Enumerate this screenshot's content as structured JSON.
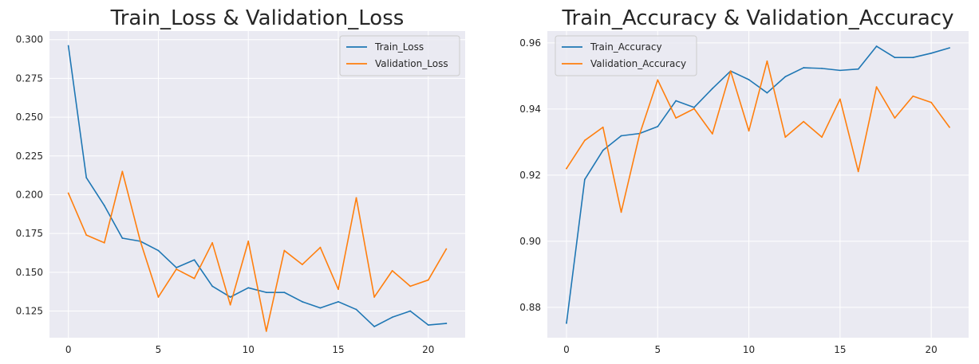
{
  "chart_data": [
    {
      "type": "line",
      "title": "Train_Loss & Validation_Loss",
      "xlabel": "",
      "ylabel": "",
      "xlim": [
        -1.05,
        22.05
      ],
      "ylim": [
        0.1078,
        0.3055
      ],
      "xticks": [
        0,
        5,
        10,
        15,
        20
      ],
      "yticks": [
        0.125,
        0.15,
        0.175,
        0.2,
        0.225,
        0.25,
        0.275,
        0.3
      ],
      "xtick_labels": [
        "0",
        "5",
        "10",
        "15",
        "20"
      ],
      "ytick_labels": [
        "0.125",
        "0.150",
        "0.175",
        "0.200",
        "0.225",
        "0.250",
        "0.275",
        "0.300"
      ],
      "grid": true,
      "legend_position": "top-right",
      "x": [
        0,
        1,
        2,
        3,
        4,
        5,
        6,
        7,
        8,
        9,
        10,
        11,
        12,
        13,
        14,
        15,
        16,
        17,
        18,
        19,
        20,
        21
      ],
      "series": [
        {
          "name": "Train_Loss",
          "color": "#1f77b4",
          "values": [
            0.296,
            0.211,
            0.193,
            0.172,
            0.17,
            0.164,
            0.153,
            0.158,
            0.141,
            0.134,
            0.14,
            0.137,
            0.137,
            0.131,
            0.127,
            0.131,
            0.126,
            0.115,
            0.121,
            0.125,
            0.116,
            0.117
          ]
        },
        {
          "name": "Validation_Loss",
          "color": "#ff7f0e",
          "values": [
            0.201,
            0.174,
            0.169,
            0.215,
            0.17,
            0.134,
            0.152,
            0.146,
            0.169,
            0.129,
            0.17,
            0.112,
            0.164,
            0.155,
            0.166,
            0.139,
            0.198,
            0.134,
            0.151,
            0.141,
            0.145,
            0.165
          ]
        }
      ]
    },
    {
      "type": "line",
      "title": "Train_Accuracy & Validation_Accuracy",
      "xlabel": "",
      "ylabel": "",
      "xlim": [
        -1.05,
        22.05
      ],
      "ylim": [
        0.8708,
        0.9636
      ],
      "xticks": [
        0,
        5,
        10,
        15,
        20
      ],
      "yticks": [
        0.88,
        0.9,
        0.92,
        0.94,
        0.96
      ],
      "xtick_labels": [
        "0",
        "5",
        "10",
        "15",
        "20"
      ],
      "ytick_labels": [
        "0.88",
        "0.90",
        "0.92",
        "0.94",
        "0.96"
      ],
      "grid": true,
      "legend_position": "top-left",
      "x": [
        0,
        1,
        2,
        3,
        4,
        5,
        6,
        7,
        8,
        9,
        10,
        11,
        12,
        13,
        14,
        15,
        16,
        17,
        18,
        19,
        20,
        21
      ],
      "series": [
        {
          "name": "Train_Accuracy",
          "color": "#1f77b4",
          "values": [
            0.8752,
            0.9187,
            0.9275,
            0.9319,
            0.9326,
            0.9347,
            0.9425,
            0.9405,
            0.9462,
            0.9515,
            0.9489,
            0.9449,
            0.9498,
            0.9525,
            0.9523,
            0.9517,
            0.9521,
            0.959,
            0.9556,
            0.9556,
            0.9569,
            0.9585
          ]
        },
        {
          "name": "Validation_Accuracy",
          "color": "#ff7f0e",
          "values": [
            0.922,
            0.9305,
            0.9345,
            0.9088,
            0.9322,
            0.9488,
            0.9373,
            0.9401,
            0.9325,
            0.9515,
            0.9334,
            0.9545,
            0.9315,
            0.9362,
            0.9315,
            0.943,
            0.9211,
            0.9467,
            0.9373,
            0.9439,
            0.942,
            0.9345
          ]
        }
      ]
    }
  ]
}
